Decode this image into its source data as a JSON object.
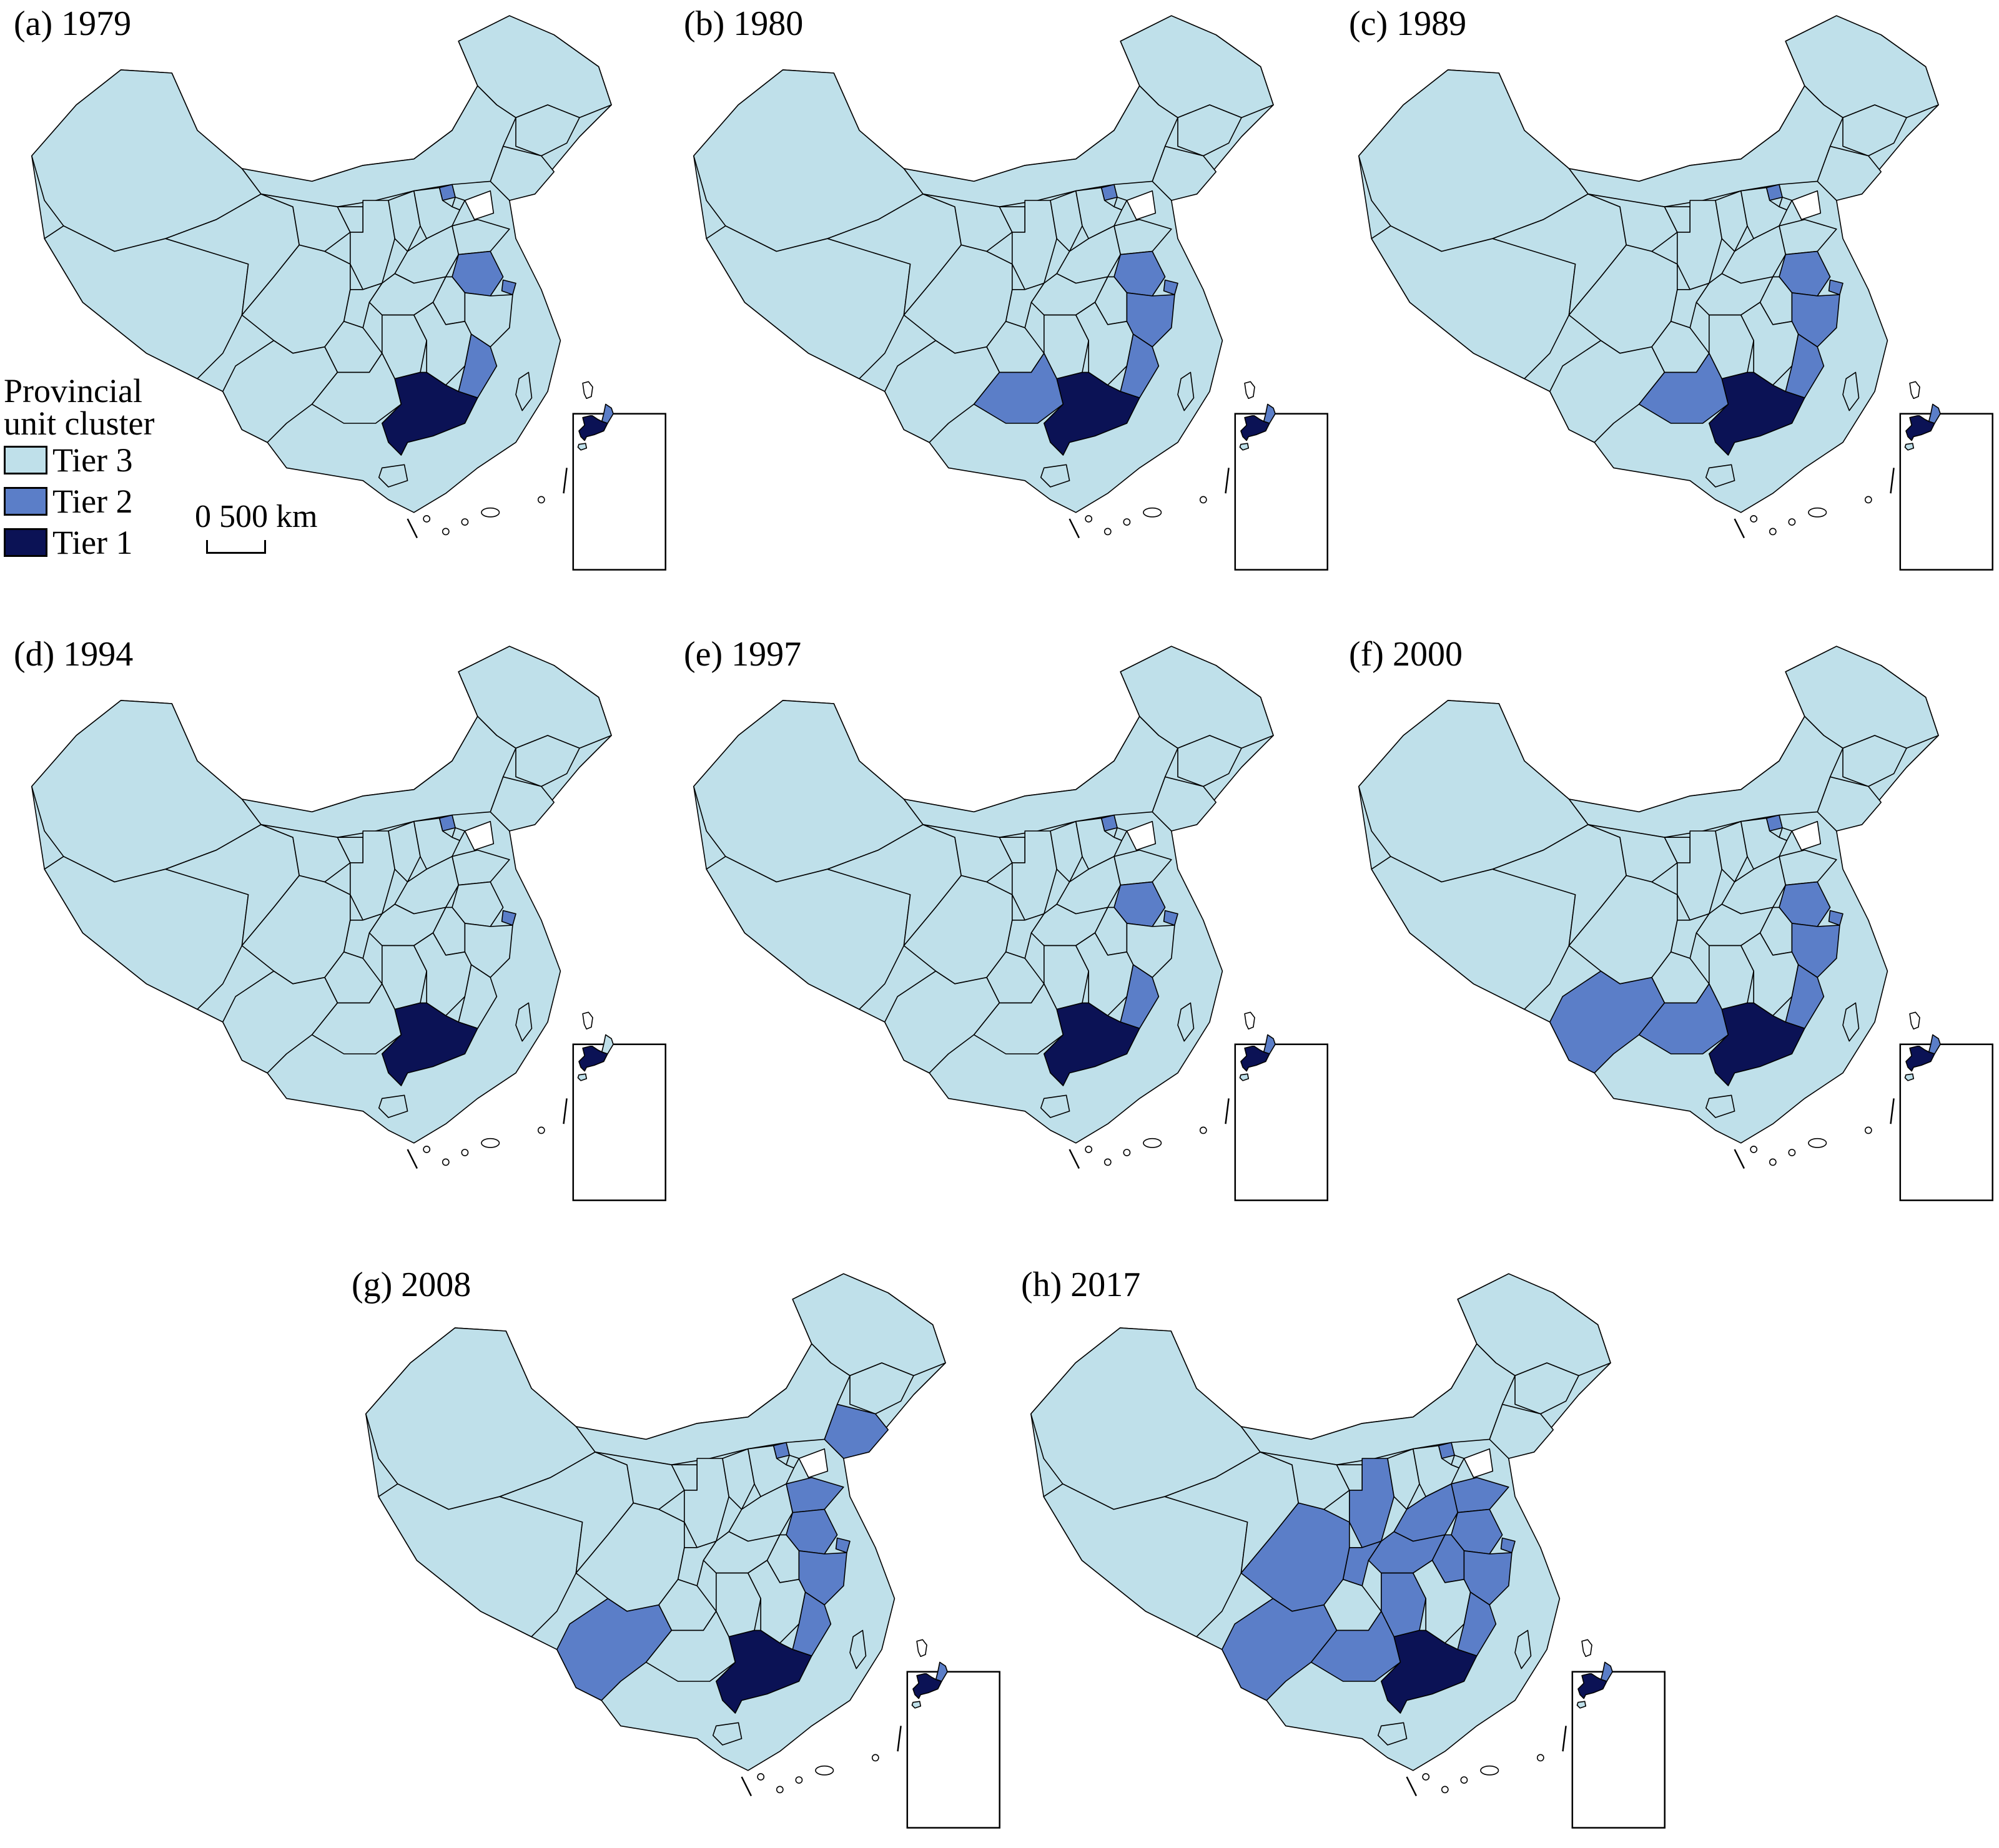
{
  "colors": {
    "tier1": "#0b1255",
    "tier2": "#5b7ec8",
    "tier3": "#bfe0ea",
    "border": "#000000",
    "water": "#ffffff"
  },
  "legend": {
    "title_line1": "Provincial",
    "title_line2": "unit cluster",
    "items": [
      {
        "label": "Tier 3",
        "tier": 3
      },
      {
        "label": "Tier 2",
        "tier": 2
      },
      {
        "label": "Tier 1",
        "tier": 1
      }
    ]
  },
  "scale": {
    "label": "0  500 km"
  },
  "panels": [
    {
      "title": "(a) 1979",
      "tier2": [
        "Beijing",
        "Shanghai",
        "Jiangsu",
        "Fujian"
      ],
      "tier1": [
        "Guangdong"
      ]
    },
    {
      "title": "(b) 1980",
      "tier2": [
        "Beijing",
        "Jiangsu",
        "Shanghai",
        "Zhejiang",
        "Fujian",
        "Guangxi"
      ],
      "tier1": [
        "Guangdong"
      ]
    },
    {
      "title": "(c) 1989",
      "tier2": [
        "Beijing",
        "Jiangsu",
        "Shanghai",
        "Zhejiang",
        "Fujian",
        "Guangxi"
      ],
      "tier1": [
        "Guangdong"
      ]
    },
    {
      "title": "(d) 1994",
      "tier2": [
        "Beijing",
        "Shanghai"
      ],
      "tier1": [
        "Guangdong"
      ]
    },
    {
      "title": "(e) 1997",
      "tier2": [
        "Beijing",
        "Jiangsu",
        "Shanghai",
        "Fujian"
      ],
      "tier1": [
        "Guangdong"
      ]
    },
    {
      "title": "(f) 2000",
      "tier2": [
        "Beijing",
        "Jiangsu",
        "Shanghai",
        "Zhejiang",
        "Fujian",
        "Guangxi",
        "Yunnan"
      ],
      "tier1": [
        "Guangdong"
      ]
    },
    {
      "title": "(g) 2008",
      "tier2": [
        "Beijing",
        "Liaoning",
        "Shandong",
        "Jiangsu",
        "Shanghai",
        "Zhejiang",
        "Fujian",
        "Yunnan"
      ],
      "tier1": [
        "Guangdong"
      ]
    },
    {
      "title": "(h) 2017",
      "tier2": [
        "Beijing",
        "Shandong",
        "Henan",
        "Jiangsu",
        "Shanghai",
        "Anhui",
        "Hubei",
        "Hunan",
        "Zhejiang",
        "Fujian",
        "Sichuan",
        "Chongqing",
        "Yunnan",
        "Guangxi",
        "Shaanxi"
      ],
      "tier1": [
        "Guangdong"
      ]
    }
  ]
}
